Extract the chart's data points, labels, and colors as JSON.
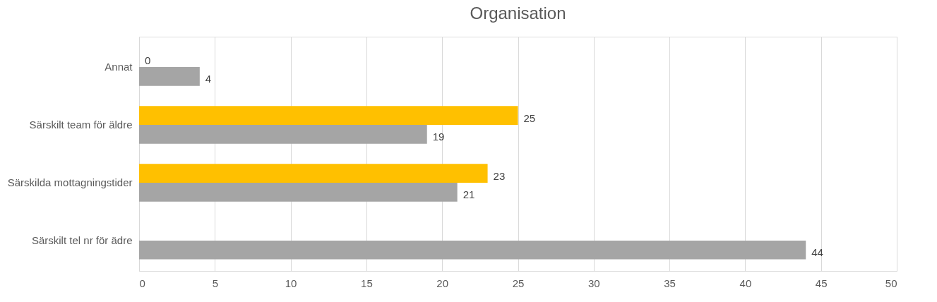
{
  "chart_data": {
    "type": "bar",
    "orientation": "horizontal",
    "title": "Organisation",
    "categories": [
      "Annat",
      "Särskilt team för äldre",
      "Särskilda mottagningstider",
      "Särskilt tel nr för ädre"
    ],
    "series": [
      {
        "color": "#ffc000",
        "values": [
          0,
          25,
          23,
          null
        ]
      },
      {
        "color": "#a5a5a5",
        "values": [
          4,
          19,
          21,
          44
        ]
      }
    ],
    "xlim": [
      0,
      50
    ],
    "xticks": [
      0,
      5,
      10,
      15,
      20,
      25,
      30,
      35,
      40,
      45,
      50
    ],
    "grid": "x",
    "data_labels": true
  }
}
